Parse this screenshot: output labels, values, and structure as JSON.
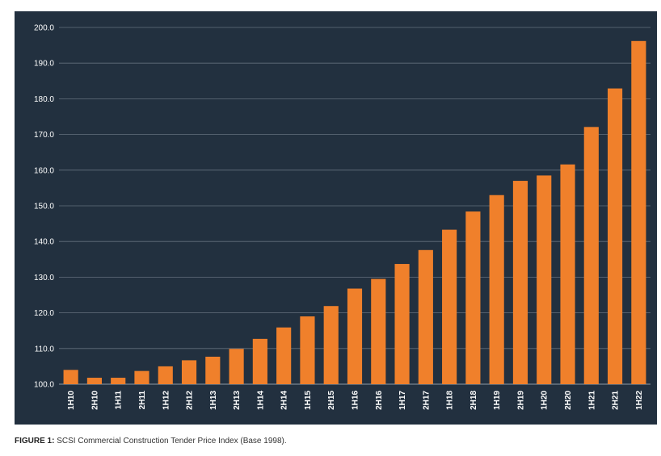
{
  "colors": {
    "panel_background": "#22303f",
    "bar": "#f0802b",
    "gridline": "#9aa6b2",
    "axis_text": "#ffffff"
  },
  "caption": {
    "label": "FIGURE 1:",
    "text": "SCSI Commercial Construction Tender Price Index (Base 1998)."
  },
  "chart_data": {
    "type": "bar",
    "title": "",
    "xlabel": "",
    "ylabel": "",
    "ylim": [
      100,
      200
    ],
    "yticks": [
      100,
      110,
      120,
      130,
      140,
      150,
      160,
      170,
      180,
      190,
      200
    ],
    "ytick_labels": [
      "100.0",
      "110.0",
      "120.0",
      "130.0",
      "140.0",
      "150.0",
      "160.0",
      "170.0",
      "180.0",
      "190.0",
      "200.0"
    ],
    "grid": true,
    "categories": [
      "1H10",
      "2H10",
      "1H11",
      "2H11",
      "1H12",
      "2H12",
      "1H13",
      "2H13",
      "1H14",
      "2H14",
      "1H15",
      "2H15",
      "1H16",
      "2H16",
      "1H17",
      "2H17",
      "1H18",
      "2H18",
      "1H19",
      "2H19",
      "1H20",
      "2H20",
      "1H21",
      "2H21",
      "1H22"
    ],
    "values": [
      104.0,
      101.8,
      101.8,
      103.7,
      105.0,
      106.7,
      107.7,
      109.9,
      112.7,
      115.9,
      119.0,
      121.9,
      126.8,
      129.5,
      133.7,
      137.6,
      143.3,
      148.4,
      153.0,
      157.0,
      158.5,
      161.6,
      172.1,
      182.9,
      196.2
    ]
  }
}
